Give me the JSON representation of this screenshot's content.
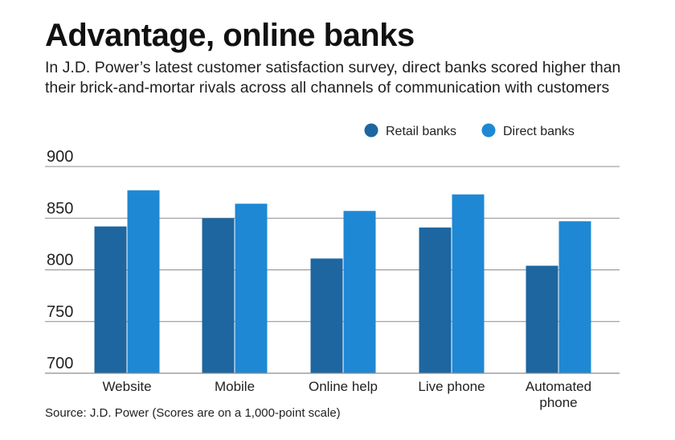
{
  "title": "Advantage, online banks",
  "subtitle": "In J.D. Power’s latest customer satisfaction survey, direct banks scored higher than their brick-and-mortar rivals across all channels of communication with customers",
  "source": "Source: J.D. Power (Scores are on a 1,000-point scale)",
  "colors": {
    "retail": "#1d66a0",
    "direct": "#1e88d4",
    "grid": "#8c8c8c"
  },
  "chart_data": {
    "type": "bar",
    "categories": [
      [
        "Website"
      ],
      [
        "Mobile"
      ],
      [
        "Online help"
      ],
      [
        "Live phone"
      ],
      [
        "Automated",
        "phone"
      ]
    ],
    "series": [
      {
        "name": "Retail banks",
        "values": [
          842,
          850,
          811,
          841,
          804
        ]
      },
      {
        "name": "Direct banks",
        "values": [
          877,
          864,
          857,
          873,
          847
        ]
      }
    ],
    "ylim": [
      700,
      900
    ],
    "yticks": [
      700,
      750,
      800,
      850,
      900
    ],
    "grid": true,
    "legend": "top-right"
  }
}
